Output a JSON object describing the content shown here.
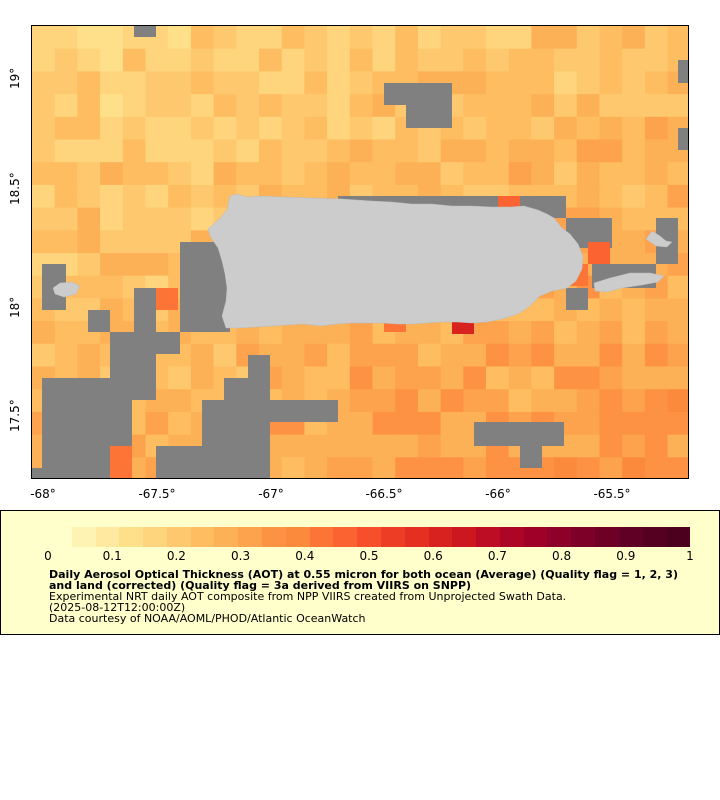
{
  "map": {
    "extent": {
      "lon_min": -68.1,
      "lon_max": -65.17,
      "lat_min": 17.23,
      "lat_max": 19.25
    },
    "lon_ticks": [
      "-68°",
      "-67.5°",
      "-67°",
      "-66.5°",
      "-66°",
      "-65.5°"
    ],
    "lat_ticks": [
      "19°",
      "18.5°",
      "18°",
      "17.5°"
    ],
    "colors": {
      "no_data": "#808080",
      "land": "#cccccc",
      "background": "#ffffff"
    }
  },
  "colorbar": {
    "ticks": [
      "0",
      "0.1",
      "0.2",
      "0.3",
      "0.4",
      "0.5",
      "0.6",
      "0.7",
      "0.8",
      "0.9",
      "1"
    ],
    "colors": [
      "#ffffcc",
      "#fff3b3",
      "#ffe9a0",
      "#fee08b",
      "#fed57c",
      "#fec96e",
      "#febd61",
      "#fdb157",
      "#fda24d",
      "#fd9244",
      "#fc8a3d",
      "#fc7537",
      "#fb6431",
      "#f74f2b",
      "#ee3d25",
      "#e42f21",
      "#d8221f",
      "#cc171f",
      "#bd0d25",
      "#ad0526",
      "#9e0028",
      "#8c002a",
      "#7c0028",
      "#6e0026",
      "#600024",
      "#550020",
      "#4d001d"
    ]
  },
  "legend": {
    "title": "Daily Aerosol Optical Thickness (AOT) at 0.55 micron for both ocean (Average) (Quality flag = 1, 2, 3) and land (corrected) (Quality flag = 3a derived from VIIRS on SNPP)",
    "line1": "Experimental NRT daily AOT composite from NPP VIIRS created from Unprojected Swath Data.",
    "line2": "(2025-08-12T12:00:00Z)",
    "line3": "Data courtesy of NOAA/AOML/PHOD/Atlantic OceanWatch"
  }
}
